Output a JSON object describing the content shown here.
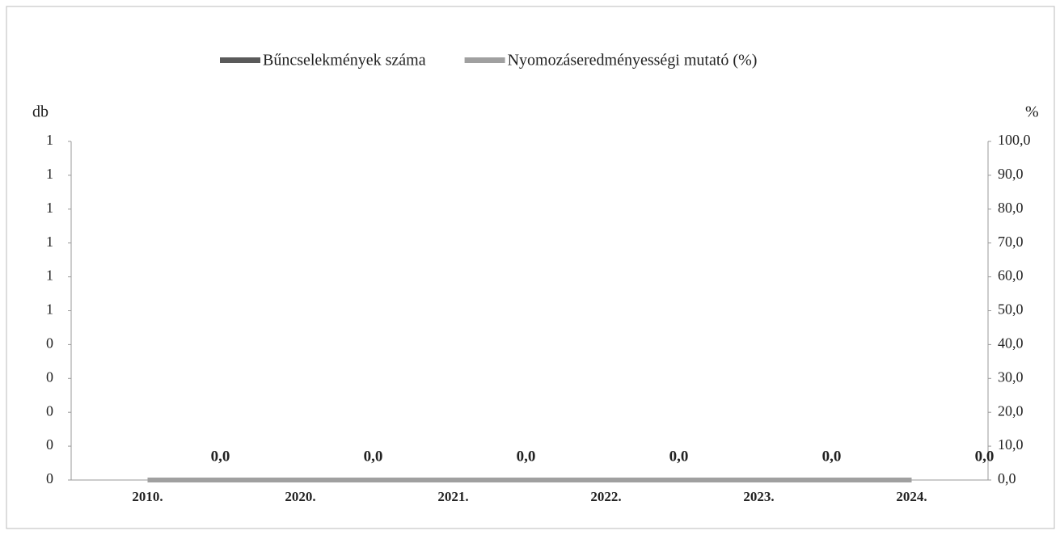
{
  "chart_data": {
    "type": "bar",
    "categories": [
      "2010.",
      "2020.",
      "2021.",
      "2022.",
      "2023.",
      "2024."
    ],
    "series": [
      {
        "name": "Bűncselekmények száma",
        "color": "#5a5a5a",
        "values": [
          0,
          0,
          0,
          0,
          0,
          0
        ]
      },
      {
        "name": "Nyomozáseredményességi mutató (%)",
        "color": "#a0a0a0",
        "axis": "y2",
        "type": "line",
        "values": [
          0,
          0,
          0,
          0,
          0,
          0
        ],
        "value_labels": [
          "0,0",
          "0,0",
          "0,0",
          "0,0",
          "0,0",
          "0,0"
        ]
      }
    ],
    "ylabel": "db",
    "y2label": "%",
    "ylim": [
      0,
      1
    ],
    "yticks": [
      {
        "value": 0,
        "label": "0"
      },
      {
        "value": 0.1,
        "label": "0"
      },
      {
        "value": 0.2,
        "label": "0"
      },
      {
        "value": 0.3,
        "label": "0"
      },
      {
        "value": 0.4,
        "label": "0"
      },
      {
        "value": 0.5,
        "label": "1"
      },
      {
        "value": 0.6,
        "label": "1"
      },
      {
        "value": 0.7,
        "label": "1"
      },
      {
        "value": 0.8,
        "label": "1"
      },
      {
        "value": 0.9,
        "label": "1"
      },
      {
        "value": 1,
        "label": "1"
      }
    ],
    "y2lim": [
      0,
      100
    ],
    "y2ticks": [
      {
        "value": 0,
        "label": "0,0"
      },
      {
        "value": 10,
        "label": "10,0"
      },
      {
        "value": 20,
        "label": "20,0"
      },
      {
        "value": 30,
        "label": "30,0"
      },
      {
        "value": 40,
        "label": "40,0"
      },
      {
        "value": 50,
        "label": "50,0"
      },
      {
        "value": 60,
        "label": "60,0"
      },
      {
        "value": 70,
        "label": "70,0"
      },
      {
        "value": 80,
        "label": "80,0"
      },
      {
        "value": 90,
        "label": "90,0"
      },
      {
        "value": 100,
        "label": "100,0"
      }
    ],
    "legend": "top"
  }
}
